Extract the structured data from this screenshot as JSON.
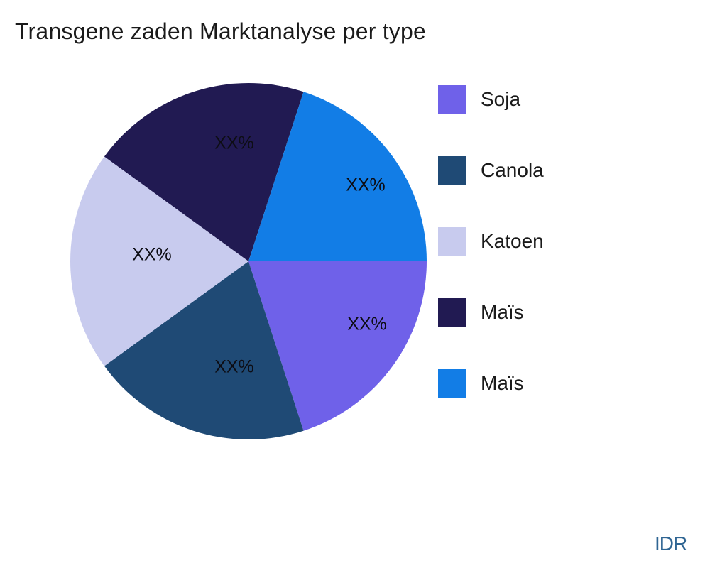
{
  "title": "Transgene zaden Marktanalyse per type",
  "watermark": "IDR",
  "colors": {
    "background": "#ffffff",
    "title_text": "#1a1a1a",
    "legend_text": "#1a1a1a",
    "slice_label_text": "#0d0d14",
    "watermark_text": "#2f6593"
  },
  "chart_data": {
    "type": "pie",
    "title": "Transgene zaden Marktanalyse per type",
    "legend_position": "right",
    "start_angle_deg": 0,
    "direction": "clockwise",
    "note": "All slice percentage labels are placeholders shown as XX%; slices are visually equal (20% each)",
    "slices": [
      {
        "label": "Soja",
        "value": 20,
        "display": "XX%",
        "color": "#6f61e9"
      },
      {
        "label": "Canola",
        "value": 20,
        "display": "XX%",
        "color": "#1f4a75"
      },
      {
        "label": "Katoen",
        "value": 20,
        "display": "XX%",
        "color": "#c8cbee"
      },
      {
        "label": "Maïs",
        "value": 20,
        "display": "XX%",
        "color": "#211a52"
      },
      {
        "label": "Maïs",
        "value": 20,
        "display": "XX%",
        "color": "#127de6"
      }
    ]
  }
}
